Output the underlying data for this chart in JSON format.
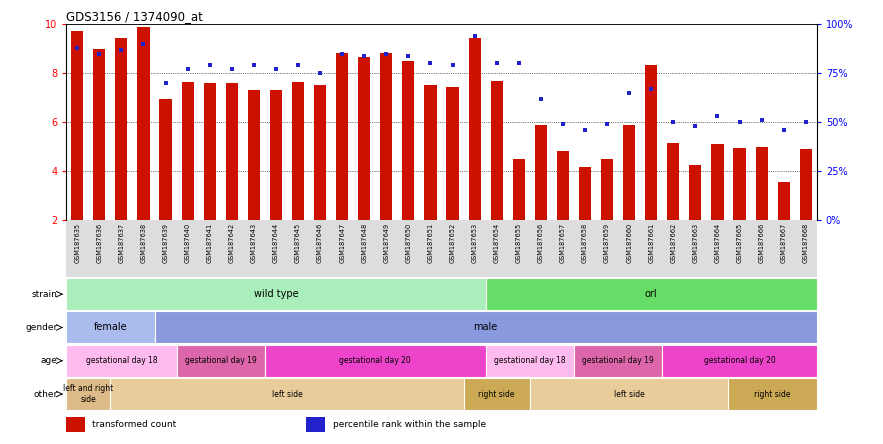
{
  "title": "GDS3156 / 1374090_at",
  "samples": [
    "GSM187635",
    "GSM187636",
    "GSM187637",
    "GSM187638",
    "GSM187639",
    "GSM187640",
    "GSM187641",
    "GSM187642",
    "GSM187643",
    "GSM187644",
    "GSM187645",
    "GSM187646",
    "GSM187647",
    "GSM187648",
    "GSM187649",
    "GSM187650",
    "GSM187651",
    "GSM187652",
    "GSM187653",
    "GSM187654",
    "GSM187655",
    "GSM187656",
    "GSM187657",
    "GSM187658",
    "GSM187659",
    "GSM187660",
    "GSM187661",
    "GSM187662",
    "GSM187663",
    "GSM187664",
    "GSM187665",
    "GSM187666",
    "GSM187667",
    "GSM187668"
  ],
  "bar_values": [
    9.75,
    9.0,
    9.45,
    9.9,
    6.95,
    7.65,
    7.6,
    7.6,
    7.3,
    7.3,
    7.65,
    7.5,
    8.85,
    8.65,
    8.85,
    8.5,
    7.5,
    7.45,
    9.45,
    7.7,
    4.5,
    5.9,
    4.8,
    4.15,
    4.5,
    5.9,
    8.35,
    5.15,
    4.25,
    5.1,
    4.95,
    5.0,
    3.55,
    4.9
  ],
  "dot_values_pct": [
    88,
    85,
    87,
    90,
    70,
    77,
    79,
    77,
    79,
    77,
    79,
    75,
    85,
    84,
    85,
    84,
    80,
    79,
    94,
    80,
    80,
    62,
    49,
    46,
    49,
    65,
    67,
    50,
    48,
    53,
    50,
    51,
    46,
    50
  ],
  "ylim_left": [
    2,
    10
  ],
  "ylim_right": [
    0,
    100
  ],
  "yticks_left": [
    2,
    4,
    6,
    8,
    10
  ],
  "yticks_right": [
    0,
    25,
    50,
    75,
    100
  ],
  "bar_color": "#cc1100",
  "dot_color": "#2222cc",
  "grid_values": [
    4,
    6,
    8
  ],
  "strain_groups": [
    {
      "label": "wild type",
      "start": 0,
      "end": 19,
      "color": "#aaeebb"
    },
    {
      "label": "orl",
      "start": 19,
      "end": 34,
      "color": "#66dd66"
    }
  ],
  "gender_groups": [
    {
      "label": "female",
      "start": 0,
      "end": 4,
      "color": "#aabbee"
    },
    {
      "label": "male",
      "start": 4,
      "end": 34,
      "color": "#8899dd"
    }
  ],
  "age_groups": [
    {
      "label": "gestational day 18",
      "start": 0,
      "end": 5,
      "color": "#ffbbee"
    },
    {
      "label": "gestational day 19",
      "start": 5,
      "end": 9,
      "color": "#dd66aa"
    },
    {
      "label": "gestational day 20",
      "start": 9,
      "end": 19,
      "color": "#ee44cc"
    },
    {
      "label": "gestational day 18",
      "start": 19,
      "end": 23,
      "color": "#ffbbee"
    },
    {
      "label": "gestational day 19",
      "start": 23,
      "end": 27,
      "color": "#dd66aa"
    },
    {
      "label": "gestational day 20",
      "start": 27,
      "end": 34,
      "color": "#ee44cc"
    }
  ],
  "other_groups": [
    {
      "label": "left and right\nside",
      "start": 0,
      "end": 2,
      "color": "#ddbb88"
    },
    {
      "label": "left side",
      "start": 2,
      "end": 18,
      "color": "#e8cc99"
    },
    {
      "label": "right side",
      "start": 18,
      "end": 21,
      "color": "#ccaa55"
    },
    {
      "label": "left side",
      "start": 21,
      "end": 30,
      "color": "#e8cc99"
    },
    {
      "label": "right side",
      "start": 30,
      "end": 34,
      "color": "#ccaa55"
    }
  ],
  "legend_items": [
    {
      "label": "transformed count",
      "color": "#cc1100"
    },
    {
      "label": "percentile rank within the sample",
      "color": "#2222cc"
    }
  ],
  "xtick_bg": "#dddddd"
}
